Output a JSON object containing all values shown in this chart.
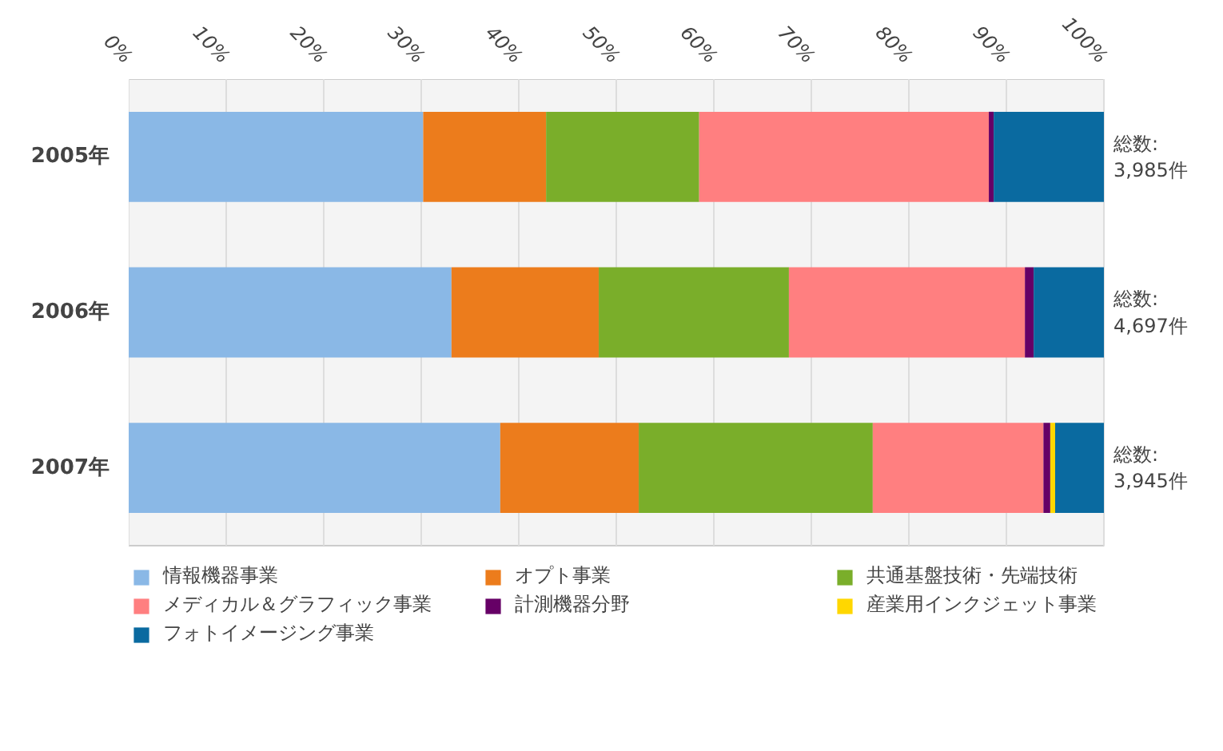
{
  "chart_data": {
    "type": "bar",
    "orientation": "horizontal",
    "stacked": true,
    "categories": [
      "2005年",
      "2006年",
      "2007年"
    ],
    "series": [
      {
        "name": "情報機器事業",
        "color": "#8ab8e6",
        "values": [
          30.2,
          33.1,
          38.1
        ]
      },
      {
        "name": "オプト事業",
        "color": "#ec7c1c",
        "values": [
          12.6,
          15.1,
          14.2
        ]
      },
      {
        "name": "共通基盤技術・先端技術",
        "color": "#7aae2a",
        "values": [
          15.7,
          19.5,
          24.0
        ]
      },
      {
        "name": "メディカル＆グラフィック事業",
        "color": "#ff7f80",
        "values": [
          29.7,
          24.2,
          17.5
        ]
      },
      {
        "name": "計測機器分野",
        "color": "#660066",
        "values": [
          0.5,
          0.9,
          0.7
        ]
      },
      {
        "name": "産業用インクジェット事業",
        "color": "#ffd700",
        "values": [
          0,
          0,
          0.5
        ]
      },
      {
        "name": "フォトイメージング事業",
        "color": "#0a6aa0",
        "values": [
          11.3,
          7.2,
          5.0
        ]
      }
    ],
    "xlim": [
      0,
      100
    ],
    "xticks": [
      {
        "value": 0,
        "label": "0%"
      },
      {
        "value": 10,
        "label": "10%"
      },
      {
        "value": 20,
        "label": "20%"
      },
      {
        "value": 30,
        "label": "30%"
      },
      {
        "value": 40,
        "label": "40%"
      },
      {
        "value": 50,
        "label": "50%"
      },
      {
        "value": 60,
        "label": "60%"
      },
      {
        "value": 70,
        "label": "70%"
      },
      {
        "value": 80,
        "label": "80%"
      },
      {
        "value": 90,
        "label": "90%"
      },
      {
        "value": 100,
        "label": "100%"
      }
    ],
    "annotations": [
      "総数:\n3,985件",
      "総数:\n4,697件",
      "総数:\n3,945件"
    ],
    "grid": "x",
    "legend": "bottom"
  }
}
